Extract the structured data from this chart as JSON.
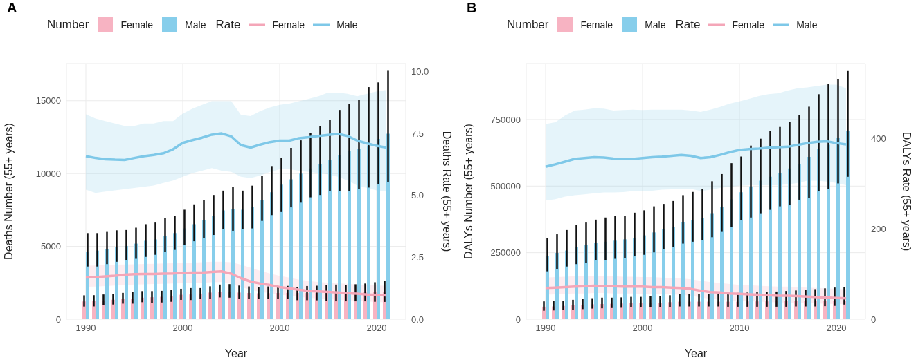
{
  "chart_data": [
    {
      "type": "bar",
      "title": "A",
      "xlabel": "Year",
      "ylabel": "Deaths Number (55+ years)",
      "y2label": "Deaths Rate (55+ years)",
      "legend_title": [
        "Number",
        "Rate"
      ],
      "legend": "top",
      "grid": true,
      "x": [
        1990,
        1991,
        1992,
        1993,
        1994,
        1995,
        1996,
        1997,
        1998,
        1999,
        2000,
        2001,
        2002,
        2003,
        2004,
        2005,
        2006,
        2007,
        2008,
        2009,
        2010,
        2011,
        2012,
        2013,
        2014,
        2015,
        2016,
        2017,
        2018,
        2019,
        2020,
        2021
      ],
      "xlim": [
        1988,
        2023
      ],
      "xticks": [
        1990,
        2000,
        2010,
        2020
      ],
      "ylim": [
        0,
        17550
      ],
      "yticks": [
        0,
        5000,
        10000,
        15000
      ],
      "y2lim": [
        0,
        10.32
      ],
      "y2ticks": [
        {
          "value": 0,
          "label": "0.0"
        },
        2.5,
        {
          "value": 5,
          "label": "5.0"
        },
        7.5,
        {
          "value": 10,
          "label": "10.0"
        }
      ],
      "series": [
        {
          "name": "Female",
          "color": "#f7b3c2",
          "values": [
            1220,
            1240,
            1270,
            1340,
            1390,
            1410,
            1480,
            1510,
            1540,
            1600,
            1680,
            1700,
            1760,
            1830,
            1890,
            1880,
            1830,
            1800,
            1780,
            1790,
            1800,
            1810,
            1800,
            1800,
            1810,
            1810,
            1820,
            1830,
            1830,
            1840,
            1850,
            1860
          ],
          "errors": [
            [
              870,
              1640
            ],
            [
              880,
              1650
            ],
            [
              960,
              1700
            ],
            [
              1010,
              1730
            ],
            [
              1070,
              1810
            ],
            [
              1070,
              1850
            ],
            [
              1170,
              1930
            ],
            [
              1120,
              1930
            ],
            [
              1150,
              1950
            ],
            [
              1200,
              2040
            ],
            [
              1330,
              2090
            ],
            [
              1320,
              2140
            ],
            [
              1420,
              2140
            ],
            [
              1420,
              2260
            ],
            [
              1500,
              2380
            ],
            [
              1480,
              2410
            ],
            [
              1380,
              2310
            ],
            [
              1380,
              2250
            ],
            [
              1390,
              2200
            ],
            [
              1380,
              2250
            ],
            [
              1380,
              2280
            ],
            [
              1380,
              2290
            ],
            [
              1310,
              2210
            ],
            [
              1310,
              2280
            ],
            [
              1300,
              2300
            ],
            [
              1260,
              2340
            ],
            [
              1230,
              2380
            ],
            [
              1230,
              2370
            ],
            [
              1230,
              2400
            ],
            [
              1230,
              2450
            ],
            [
              1200,
              2540
            ],
            [
              1190,
              2630
            ]
          ]
        },
        {
          "name": "Male",
          "color": "#87ceeb",
          "values": [
            4630,
            4710,
            4825,
            4950,
            5030,
            5190,
            5385,
            5480,
            5705,
            5915,
            6235,
            6525,
            6800,
            7085,
            7470,
            7565,
            7520,
            7710,
            8160,
            8720,
            9235,
            9600,
            10000,
            10355,
            10645,
            10915,
            11285,
            11525,
            11685,
            11925,
            12375,
            12730
          ],
          "errors": [
            [
              3620,
              5915
            ],
            [
              3620,
              5915
            ],
            [
              3785,
              5995
            ],
            [
              3945,
              6105
            ],
            [
              4070,
              6125
            ],
            [
              4150,
              6285
            ],
            [
              4280,
              6525
            ],
            [
              4425,
              6635
            ],
            [
              4600,
              6955
            ],
            [
              4760,
              7085
            ],
            [
              5080,
              7520
            ],
            [
              5355,
              7885
            ],
            [
              5560,
              8190
            ],
            [
              5785,
              8530
            ],
            [
              6205,
              8830
            ],
            [
              6075,
              9090
            ],
            [
              6190,
              8830
            ],
            [
              6235,
              9170
            ],
            [
              6750,
              9840
            ],
            [
              7150,
              10515
            ],
            [
              7360,
              11095
            ],
            [
              7680,
              11765
            ],
            [
              8000,
              12280
            ],
            [
              8370,
              12760
            ],
            [
              8530,
              13240
            ],
            [
              8785,
              13690
            ],
            [
              8785,
              14365
            ],
            [
              8785,
              14765
            ],
            [
              8960,
              15050
            ],
            [
              9040,
              15935
            ],
            [
              9280,
              16255
            ],
            [
              9440,
              17055
            ]
          ]
        },
        {
          "name": "Female",
          "type": "line",
          "axis": "y2",
          "color": "#f4a6b8",
          "values": [
            1.69,
            1.7,
            1.73,
            1.76,
            1.8,
            1.82,
            1.83,
            1.83,
            1.84,
            1.85,
            1.87,
            1.88,
            1.88,
            1.91,
            1.93,
            1.84,
            1.66,
            1.52,
            1.44,
            1.38,
            1.3,
            1.25,
            1.19,
            1.14,
            1.12,
            1.1,
            1.08,
            1.05,
            1.03,
            1.0,
            0.98,
            0.96
          ],
          "lower": [
            1.31,
            1.32,
            1.34,
            1.36,
            1.38,
            1.4,
            1.41,
            1.42,
            1.43,
            1.44,
            1.45,
            1.46,
            1.47,
            1.49,
            1.5,
            1.42,
            1.3,
            1.2,
            1.1,
            1.05,
            1.0,
            0.95,
            0.9,
            0.87,
            0.84,
            0.8,
            0.79,
            0.77,
            0.75,
            0.72,
            0.7,
            0.68
          ],
          "upper": [
            2.16,
            2.17,
            2.18,
            2.2,
            2.21,
            2.22,
            2.23,
            2.24,
            2.25,
            2.26,
            2.28,
            2.29,
            2.3,
            2.32,
            2.32,
            2.3,
            2.2,
            2.08,
            1.95,
            1.85,
            1.75,
            1.68,
            1.6,
            1.55,
            1.5,
            1.48,
            1.45,
            1.43,
            1.4,
            1.38,
            1.36,
            1.35
          ]
        },
        {
          "name": "Male",
          "type": "line",
          "axis": "y2",
          "color": "#7ec8e8",
          "values": [
            6.58,
            6.51,
            6.46,
            6.44,
            6.43,
            6.51,
            6.58,
            6.63,
            6.7,
            6.86,
            7.12,
            7.23,
            7.33,
            7.45,
            7.5,
            7.38,
            7.03,
            6.93,
            7.05,
            7.15,
            7.21,
            7.21,
            7.31,
            7.35,
            7.4,
            7.44,
            7.48,
            7.4,
            7.21,
            7.1,
            7.0,
            6.93
          ],
          "lower": [
            5.23,
            5.1,
            5.15,
            5.2,
            5.25,
            5.3,
            5.35,
            5.4,
            5.5,
            5.6,
            5.75,
            5.9,
            6.0,
            6.1,
            6.0,
            5.95,
            5.75,
            5.7,
            5.8,
            5.95,
            6.05,
            6.05,
            6.0,
            5.95,
            5.9,
            5.85,
            5.75,
            5.6,
            5.4,
            5.3,
            5.2,
            5.15
          ],
          "upper": [
            8.27,
            8.1,
            8.0,
            7.9,
            7.8,
            7.8,
            7.9,
            7.9,
            8.0,
            8.0,
            8.3,
            8.5,
            8.65,
            8.8,
            8.8,
            8.8,
            8.25,
            8.2,
            8.4,
            8.55,
            8.65,
            8.7,
            8.8,
            8.9,
            9.0,
            9.15,
            9.15,
            9.1,
            9.0,
            9.1,
            9.2,
            9.25
          ]
        }
      ]
    },
    {
      "type": "bar",
      "title": "B",
      "xlabel": "Year",
      "ylabel": "DALYs Number (55+ years)",
      "y2label": "DALYs Rate (55+ years)",
      "legend_title": [
        "Number",
        "Rate"
      ],
      "legend": "top",
      "grid": true,
      "x": [
        1990,
        1991,
        1992,
        1993,
        1994,
        1995,
        1996,
        1997,
        1998,
        1999,
        2000,
        2001,
        2002,
        2003,
        2004,
        2005,
        2006,
        2007,
        2008,
        2009,
        2010,
        2011,
        2012,
        2013,
        2014,
        2015,
        2016,
        2017,
        2018,
        2019,
        2020,
        2021
      ],
      "xlim": [
        1988,
        2023
      ],
      "xticks": [
        1990,
        2000,
        2010,
        2020
      ],
      "ylim": [
        0,
        960000
      ],
      "yticks": [
        0,
        250000,
        500000,
        750000
      ],
      "y2lim": [
        0,
        564.7
      ],
      "y2ticks": [
        0,
        200,
        400
      ],
      "series": [
        {
          "name": "Female",
          "color": "#f7b3c2",
          "values": [
            47000,
            48000,
            50000,
            52000,
            54000,
            56000,
            57000,
            58000,
            59000,
            60000,
            60000,
            61000,
            62000,
            64000,
            66000,
            66000,
            66000,
            66000,
            66000,
            66000,
            66000,
            67000,
            67000,
            67000,
            68000,
            68000,
            68000,
            69000,
            69000,
            69000,
            70000,
            70000
          ],
          "errors": [
            [
              32000,
              67000
            ],
            [
              33000,
              68000
            ],
            [
              35000,
              70000
            ],
            [
              36000,
              73000
            ],
            [
              38000,
              76000
            ],
            [
              40000,
              79000
            ],
            [
              41000,
              81000
            ],
            [
              42000,
              81000
            ],
            [
              43000,
              82000
            ],
            [
              44000,
              84000
            ],
            [
              44000,
              84000
            ],
            [
              44000,
              86000
            ],
            [
              45000,
              88000
            ],
            [
              46000,
              90000
            ],
            [
              48000,
              94000
            ],
            [
              48000,
              95000
            ],
            [
              48000,
              95000
            ],
            [
              48000,
              96000
            ],
            [
              48000,
              97000
            ],
            [
              47000,
              98000
            ],
            [
              47000,
              99000
            ],
            [
              47000,
              100000
            ],
            [
              47000,
              101000
            ],
            [
              47000,
              103000
            ],
            [
              47000,
              104000
            ],
            [
              47000,
              106000
            ],
            [
              48000,
              108000
            ],
            [
              48000,
              110000
            ],
            [
              48000,
              113000
            ],
            [
              49000,
              116000
            ],
            [
              50000,
              119000
            ],
            [
              55000,
              122000
            ]
          ]
        },
        {
          "name": "Male",
          "color": "#87ceeb",
          "values": [
            238000,
            249000,
            258000,
            271000,
            278000,
            286000,
            291000,
            295000,
            300000,
            306000,
            315000,
            326000,
            338000,
            348000,
            364000,
            371000,
            380000,
            398000,
            422000,
            450000,
            477000,
            499000,
            520000,
            535000,
            549000,
            566000,
            584000,
            610000,
            639000,
            655000,
            680000,
            706000
          ],
          "errors": [
            [
              180000,
              306000
            ],
            [
              189000,
              319000
            ],
            [
              198000,
              335000
            ],
            [
              207000,
              354000
            ],
            [
              212000,
              363000
            ],
            [
              221000,
              374000
            ],
            [
              221000,
              382000
            ],
            [
              227000,
              389000
            ],
            [
              230000,
              389000
            ],
            [
              236000,
              400000
            ],
            [
              242000,
              409000
            ],
            [
              251000,
              424000
            ],
            [
              264000,
              433000
            ],
            [
              271000,
              444000
            ],
            [
              284000,
              466000
            ],
            [
              291000,
              478000
            ],
            [
              296000,
              490000
            ],
            [
              308000,
              518000
            ],
            [
              328000,
              545000
            ],
            [
              345000,
              586000
            ],
            [
              372000,
              611000
            ],
            [
              382000,
              652000
            ],
            [
              398000,
              678000
            ],
            [
              411000,
              707000
            ],
            [
              424000,
              722000
            ],
            [
              428000,
              740000
            ],
            [
              449000,
              766000
            ],
            [
              456000,
              798000
            ],
            [
              481000,
              845000
            ],
            [
              490000,
              884000
            ],
            [
              510000,
              902000
            ],
            [
              535000,
              932000
            ]
          ]
        },
        {
          "name": "Female",
          "type": "line",
          "axis": "y2",
          "color": "#f4a6b8",
          "values": [
            69,
            70,
            71,
            72,
            73,
            74,
            73,
            73,
            72,
            72,
            72,
            71,
            71,
            70,
            69,
            67,
            63,
            60,
            59,
            57,
            56,
            55,
            54,
            53,
            52,
            52,
            51,
            50,
            49,
            48,
            47,
            46
          ],
          "lower": [
            54,
            55,
            56,
            57,
            57,
            58,
            58,
            57,
            57,
            57,
            56,
            56,
            56,
            55,
            54,
            52,
            48,
            45,
            43,
            42,
            41,
            40,
            39,
            38,
            37,
            37,
            36,
            35,
            35,
            34,
            34,
            33
          ],
          "upper": [
            92,
            93,
            94,
            95,
            95,
            96,
            95,
            95,
            94,
            94,
            93,
            93,
            92,
            91,
            90,
            88,
            85,
            82,
            80,
            78,
            76,
            75,
            74,
            73,
            72,
            72,
            71,
            70,
            69,
            68,
            67,
            66
          ]
        },
        {
          "name": "Male",
          "type": "line",
          "axis": "y2",
          "color": "#7ec8e8",
          "values": [
            337,
            342,
            348,
            354,
            356,
            358,
            357,
            355,
            354,
            354,
            356,
            358,
            359,
            361,
            363,
            361,
            356,
            358,
            363,
            369,
            374,
            376,
            377,
            379,
            380,
            381,
            385,
            389,
            392,
            393,
            389,
            386
          ],
          "lower": [
            262,
            265,
            271,
            274,
            276,
            278,
            280,
            280,
            281,
            283,
            283,
            284,
            286,
            287,
            288,
            288,
            283,
            286,
            290,
            293,
            295,
            296,
            296,
            296,
            296,
            298,
            301,
            306,
            306,
            304,
            301,
            296
          ],
          "upper": [
            431,
            435,
            450,
            461,
            463,
            466,
            465,
            461,
            462,
            463,
            462,
            463,
            463,
            463,
            463,
            461,
            458,
            463,
            469,
            476,
            481,
            487,
            493,
            497,
            499,
            505,
            510,
            512,
            515,
            518,
            518,
            510
          ]
        }
      ]
    }
  ]
}
